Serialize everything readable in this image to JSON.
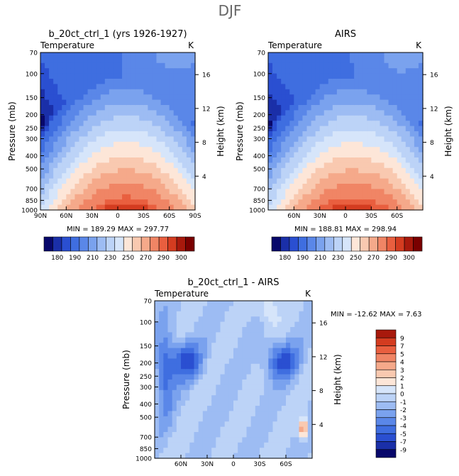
{
  "figure_title": "DJF",
  "colors": {
    "abs_scale": [
      "#08086b",
      "#1a2fa8",
      "#2a4fd1",
      "#3f6ee0",
      "#5a87e8",
      "#7aa2ee",
      "#9dbcf3",
      "#bcd3f7",
      "#d6e5fa",
      "#fde6d8",
      "#f9c9b0",
      "#f5a98a",
      "#f08565",
      "#e95f3f",
      "#d43c20",
      "#a8190c",
      "#7a0000"
    ],
    "diff_scale": [
      "#08086b",
      "#1a2fa8",
      "#2a4fd1",
      "#3f6ee0",
      "#5a87e8",
      "#7aa2ee",
      "#9dbcf3",
      "#bcd3f7",
      "#d6e5fa",
      "#fde6d8",
      "#f9c9b0",
      "#f5a98a",
      "#f08565",
      "#e95f3f",
      "#d43c20",
      "#a8190c",
      "#7a0000"
    ]
  },
  "chart_data": [
    {
      "type": "heatmap",
      "title": "b_20ct_ctrl_1 (yrs 1926-1927)",
      "left_string": "Temperature",
      "right_string": "K",
      "ylabel": "Pressure (mb)",
      "y2label": "Height (km)",
      "y_ticks": [
        "70",
        "100",
        "150",
        "200",
        "250",
        "300",
        "400",
        "500",
        "700",
        "850",
        "1000"
      ],
      "y2_ticks": [
        "16",
        "12",
        "8",
        "4"
      ],
      "x_ticks": [
        "90N",
        "60N",
        "30N",
        "0",
        "30S",
        "60S",
        "90S"
      ],
      "stats": {
        "min_label": "MIN =",
        "min": "189.29",
        "max_label": "MAX =",
        "max": "297.77"
      },
      "field": "model",
      "colorbar_labels": [
        "180",
        "190",
        "210",
        "230",
        "250",
        "270",
        "290",
        "300"
      ]
    },
    {
      "type": "heatmap",
      "title": "AIRS",
      "left_string": "Temperature",
      "right_string": "K",
      "ylabel": "Pressure (mb)",
      "y2label": "Height (km)",
      "y_ticks": [
        "70",
        "100",
        "150",
        "200",
        "250",
        "300",
        "400",
        "500",
        "700",
        "850",
        "1000"
      ],
      "y2_ticks": [
        "16",
        "12",
        "8",
        "4"
      ],
      "x_ticks": [
        "60N",
        "30N",
        "0",
        "30S",
        "60S"
      ],
      "stats": {
        "min_label": "MIN =",
        "min": "188.81",
        "max_label": "MAX =",
        "max": "298.94"
      },
      "field": "obs",
      "colorbar_labels": [
        "180",
        "190",
        "210",
        "230",
        "250",
        "270",
        "290",
        "300"
      ]
    },
    {
      "type": "heatmap",
      "title": "b_20ct_ctrl_1 - AIRS",
      "left_string": "Temperature",
      "right_string": "K",
      "ylabel": "Pressure (mb)",
      "y2label": "Height (km)",
      "y_ticks": [
        "70",
        "100",
        "150",
        "200",
        "250",
        "300",
        "400",
        "500",
        "700",
        "850",
        "1000"
      ],
      "y2_ticks": [
        "16",
        "12",
        "8",
        "4"
      ],
      "x_ticks": [
        "60N",
        "30N",
        "0",
        "30S",
        "60S"
      ],
      "stats": {
        "min_label": "MIN =",
        "min": "-12.62",
        "max_label": "MAX =",
        "max": "7.63"
      },
      "field": "diff",
      "colorbar_labels": [
        "9",
        "7",
        "5",
        "4",
        "3",
        "2",
        "1",
        "0",
        "-1",
        "-2",
        "-3",
        "-4",
        "-5",
        "-7",
        "-9"
      ]
    }
  ]
}
